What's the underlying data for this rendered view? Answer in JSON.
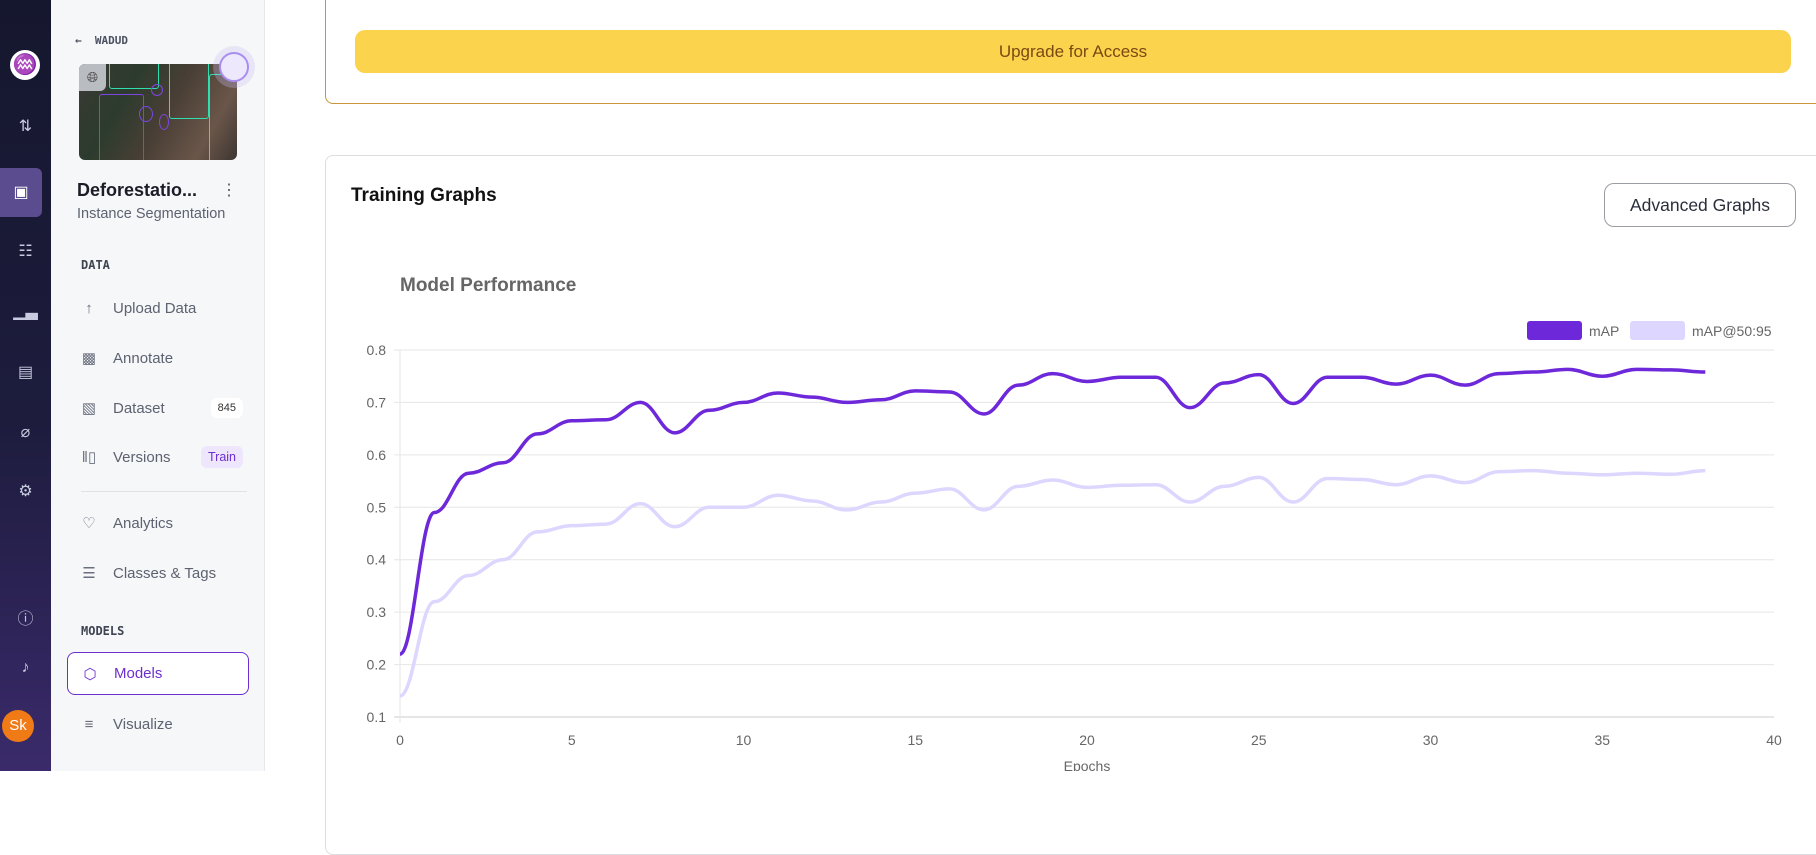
{
  "rail": {
    "icons": [
      "logo-icon",
      "transfer-icon",
      "inbox-icon",
      "hierarchy-icon",
      "analytics-icon",
      "storage-icon",
      "planet-icon",
      "gear-icon",
      "help-icon",
      "bell-icon"
    ],
    "avatar": "Sk"
  },
  "sidebar": {
    "back_label": "WADUD",
    "project_title": "Deforestatio...",
    "project_type": "Instance Segmentation",
    "data_section": "DATA",
    "models_section": "MODELS",
    "items": [
      {
        "label": "Upload Data",
        "icon": "upload-icon"
      },
      {
        "label": "Annotate",
        "icon": "annotate-icon"
      },
      {
        "label": "Dataset",
        "icon": "images-icon",
        "badge": "845"
      },
      {
        "label": "Versions",
        "icon": "versions-icon",
        "badge": "Train"
      },
      {
        "label": "Analytics",
        "icon": "heart-pulse-icon"
      },
      {
        "label": "Classes & Tags",
        "icon": "list-ordered-icon"
      },
      {
        "label": "Models",
        "icon": "models-icon",
        "selected": true
      },
      {
        "label": "Visualize",
        "icon": "chart-icon"
      }
    ]
  },
  "upgrade": {
    "label": "Upgrade for Access",
    "color": "#fcd34d"
  },
  "training": {
    "title": "Training Graphs",
    "advanced_button": "Advanced Graphs"
  },
  "chart_data": {
    "type": "line",
    "title": "Model Performance",
    "xlabel": "Epochs",
    "ylabel": "",
    "xlim": [
      0,
      40
    ],
    "ylim": [
      0.1,
      0.8
    ],
    "xticks": [
      0,
      5,
      10,
      15,
      20,
      25,
      30,
      35,
      40
    ],
    "yticks": [
      0.1,
      0.2,
      0.3,
      0.4,
      0.5,
      0.6,
      0.7,
      0.8
    ],
    "grid": true,
    "legend": "top-right",
    "x": [
      0,
      1,
      2,
      3,
      4,
      5,
      6,
      7,
      8,
      9,
      10,
      11,
      12,
      13,
      14,
      15,
      16,
      17,
      18,
      19,
      20,
      21,
      22,
      23,
      24,
      25,
      26,
      27,
      28,
      29,
      30,
      31,
      32,
      33,
      34,
      35,
      36,
      37,
      38
    ],
    "series": [
      {
        "name": "mAP",
        "color": "#6d28d9",
        "values": [
          0.22,
          0.49,
          0.565,
          0.585,
          0.64,
          0.665,
          0.667,
          0.7,
          0.642,
          0.685,
          0.7,
          0.718,
          0.71,
          0.7,
          0.705,
          0.722,
          0.72,
          0.678,
          0.733,
          0.755,
          0.74,
          0.748,
          0.748,
          0.69,
          0.737,
          0.753,
          0.698,
          0.748,
          0.748,
          0.735,
          0.752,
          0.733,
          0.755,
          0.758,
          0.763,
          0.75,
          0.763,
          0.762,
          0.758
        ]
      },
      {
        "name": "mAP@50:95",
        "color": "#ddd6fe",
        "values": [
          0.14,
          0.32,
          0.37,
          0.4,
          0.453,
          0.465,
          0.468,
          0.507,
          0.463,
          0.5,
          0.5,
          0.523,
          0.512,
          0.495,
          0.51,
          0.527,
          0.535,
          0.495,
          0.54,
          0.552,
          0.538,
          0.542,
          0.543,
          0.51,
          0.54,
          0.557,
          0.51,
          0.555,
          0.553,
          0.543,
          0.56,
          0.547,
          0.568,
          0.57,
          0.565,
          0.562,
          0.565,
          0.563,
          0.57
        ]
      }
    ]
  }
}
